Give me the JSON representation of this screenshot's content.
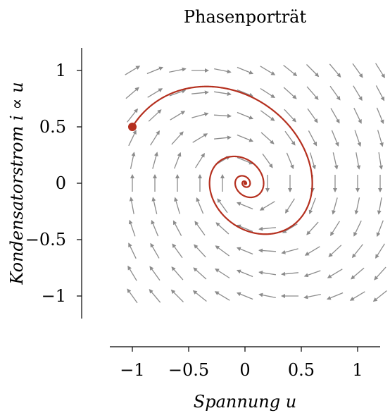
{
  "chart_data": {
    "type": "phase-portrait",
    "title": "Phasenporträt",
    "xlabel": "Spannung u",
    "ylabel": "Kondensatorstrom i ∝ u",
    "xlim": [
      -1.2,
      1.2
    ],
    "ylim": [
      -1.2,
      1.2
    ],
    "x_ticks": [
      -1,
      -0.5,
      0,
      0.5,
      1
    ],
    "x_tick_labels": [
      "−1",
      "−0.5",
      "0",
      "0.5",
      "1"
    ],
    "y_ticks": [
      1,
      0.5,
      0,
      -0.5,
      -1
    ],
    "y_tick_labels": [
      "1",
      "0.5",
      "0",
      "−0.5",
      "−1"
    ],
    "vector_field": {
      "system": "du/dt = i, di/dt = -u - 0.4*i",
      "grid_x": [
        -1,
        -0.8,
        -0.6,
        -0.4,
        -0.2,
        0,
        0.2,
        0.4,
        0.6,
        0.8,
        1,
        1.2
      ],
      "grid_y": [
        1,
        0.8,
        0.6,
        0.4,
        0.2,
        0,
        -0.2,
        -0.4,
        -0.6,
        -0.8,
        -1
      ],
      "color": "#8c8c8c"
    },
    "trajectory": {
      "initial_point": [
        -1,
        0.5
      ],
      "color": "#b5301f",
      "spirals_to": [
        0,
        0
      ]
    },
    "grid": false,
    "axis_style": "detached"
  }
}
